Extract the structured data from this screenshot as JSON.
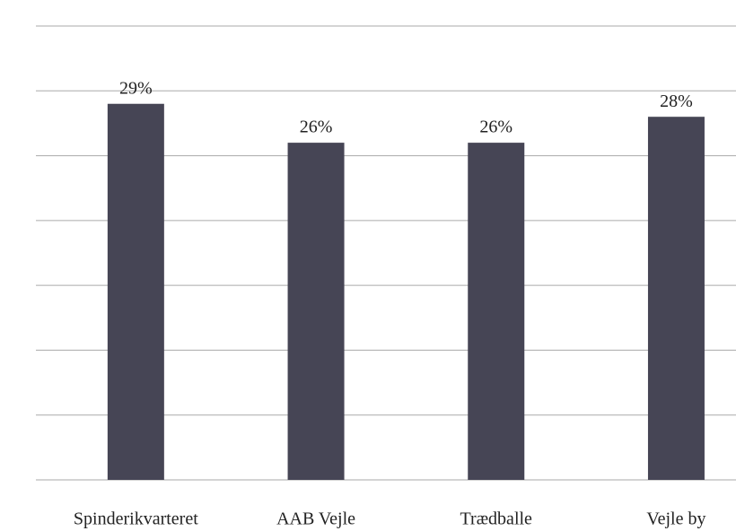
{
  "chart_data": {
    "type": "bar",
    "categories": [
      "Spinderikvarteret",
      "AAB Vejle",
      "Trædballe",
      "Vejle by"
    ],
    "values": [
      29,
      26,
      26,
      28
    ],
    "value_labels": [
      "29%",
      "26%",
      "26%",
      "28%"
    ],
    "color": "#464555",
    "ylim": [
      0,
      35
    ],
    "yticks": [
      0,
      5,
      10,
      15,
      20,
      25,
      30,
      35
    ],
    "grid": true
  }
}
